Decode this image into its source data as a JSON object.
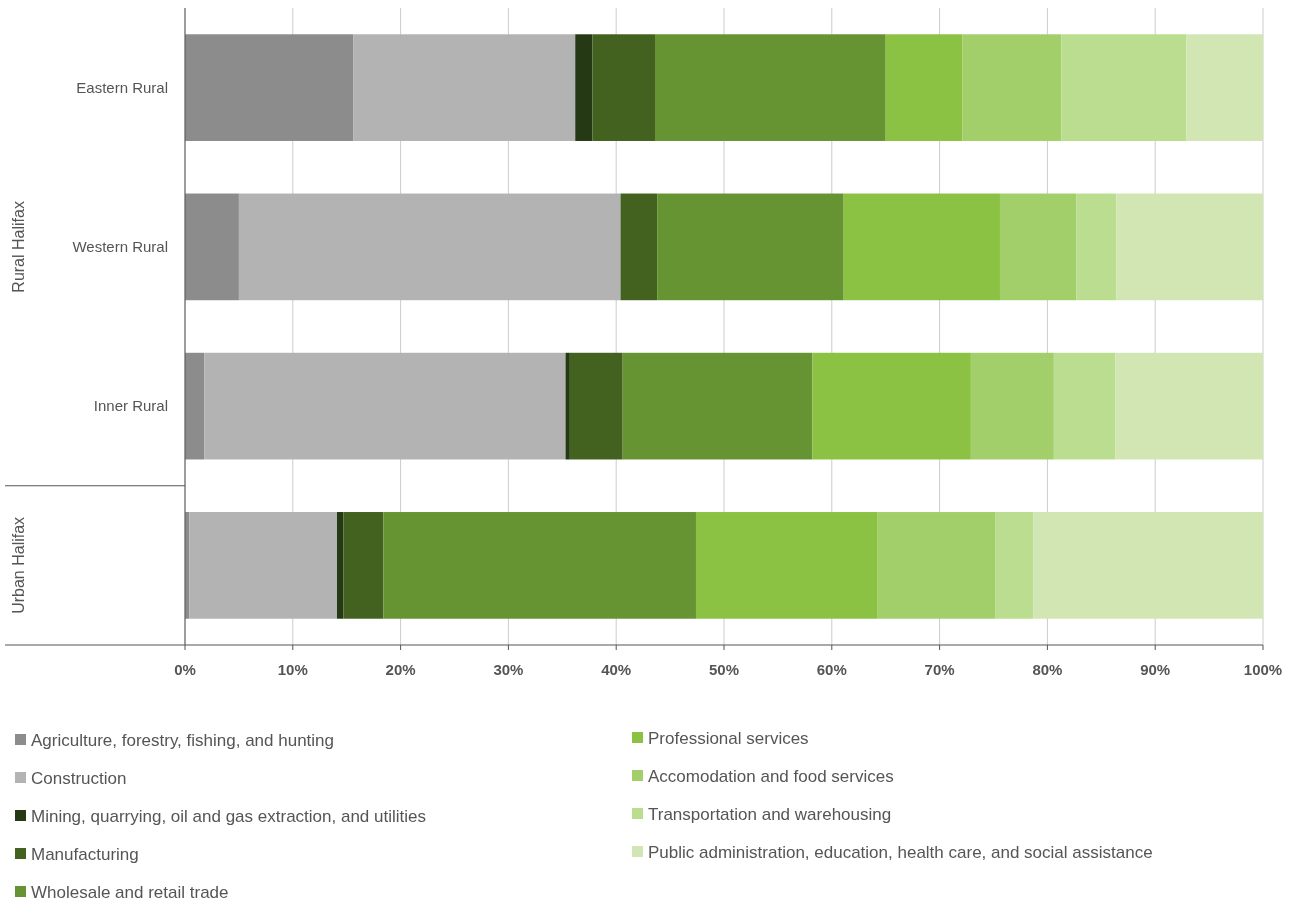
{
  "chart_data": {
    "type": "bar",
    "orientation": "horizontal",
    "stacked": true,
    "categories": [
      "Eastern Rural",
      "Western Rural",
      "Inner Rural",
      null
    ],
    "annotations": [
      "Rural Halifax",
      "Urban Halifax"
    ],
    "series": [
      {
        "name": "Agriculture, forestry, fishing, and hunting",
        "color": "#8c8c8c",
        "values": [
          15.6,
          5.0,
          1.8,
          0.4
        ]
      },
      {
        "name": "Construction",
        "color": "#b3b3b3",
        "values": [
          20.6,
          35.4,
          33.5,
          13.7
        ]
      },
      {
        "name": "Mining, quarrying, oil and gas extraction, and utilities",
        "color": "#253a14",
        "values": [
          1.6,
          0,
          0.4,
          0.6
        ]
      },
      {
        "name": "Manufacturing",
        "color": "#43611f",
        "values": [
          5.8,
          3.4,
          4.9,
          3.7
        ]
      },
      {
        "name": "Wholesale and retail trade",
        "color": "#679433",
        "values": [
          21.4,
          17.3,
          17.6,
          29.0
        ]
      },
      {
        "name": "Professional services",
        "color": "#8bc243",
        "values": [
          7.1,
          14.5,
          14.7,
          16.8
        ]
      },
      {
        "name": "Accomodation and food services",
        "color": "#a3cf6b",
        "values": [
          9.2,
          7.1,
          7.7,
          11.0
        ]
      },
      {
        "name": "Transportation and warehousing",
        "color": "#badd8f",
        "values": [
          11.6,
          3.7,
          5.7,
          3.5
        ]
      },
      {
        "name": "Public administration, education, health care, and social assistance",
        "color": "#d1e6b3",
        "values": [
          7.1,
          13.6,
          13.7,
          21.3
        ]
      }
    ],
    "xlim": [
      0,
      100
    ],
    "xticks": [
      {
        "value": 0,
        "label": "0%"
      },
      {
        "value": 10,
        "label": "10%"
      },
      {
        "value": 20,
        "label": "20%"
      },
      {
        "value": 30,
        "label": "30%"
      },
      {
        "value": 40,
        "label": "40%"
      },
      {
        "value": 50,
        "label": "50%"
      },
      {
        "value": 60,
        "label": "60%"
      },
      {
        "value": 70,
        "label": "70%"
      },
      {
        "value": 80,
        "label": "80%"
      },
      {
        "value": 90,
        "label": "90%"
      },
      {
        "value": 100,
        "label": "100%"
      }
    ],
    "grid": "x",
    "legend": "bottom"
  }
}
